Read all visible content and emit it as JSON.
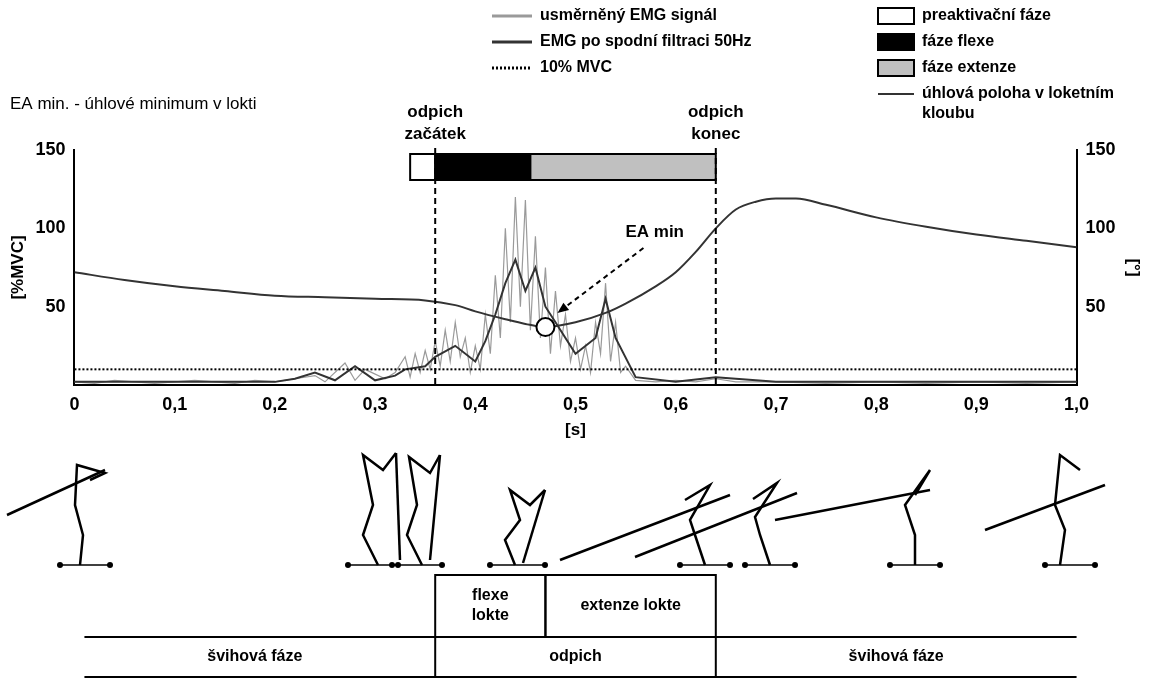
{
  "chart_data": {
    "type": "line",
    "note": "EA min. - úhlové minimum v lokti",
    "x_label": "[s]",
    "y_label": "[%MVC]",
    "y2_label": "[°]",
    "xlim": [
      0,
      1
    ],
    "xticks": [
      0,
      {
        "value": 0.1,
        "label": "0,1"
      },
      {
        "value": 0.2,
        "label": "0,2"
      },
      {
        "value": 0.3,
        "label": "0,3"
      },
      {
        "value": 0.4,
        "label": "0,4"
      },
      {
        "value": 0.5,
        "label": "0,5"
      },
      {
        "value": 0.6,
        "label": "0,6"
      },
      {
        "value": 0.7,
        "label": "0,7"
      },
      {
        "value": 0.8,
        "label": "0,8"
      },
      {
        "value": 0.9,
        "label": "0,9"
      },
      {
        "value": 1,
        "label": "1,0"
      }
    ],
    "ylim": [
      0,
      150
    ],
    "yticks": [
      50,
      100,
      150
    ],
    "y2lim": [
      0,
      150
    ],
    "y2ticks": [
      50,
      100,
      150
    ],
    "grid": false,
    "legend": "top",
    "series": [
      {
        "name": "usměrněný EMG signál",
        "color": "#9a9a9a",
        "line_style": "solid",
        "x": [
          0,
          0.02,
          0.04,
          0.06,
          0.08,
          0.1,
          0.12,
          0.14,
          0.16,
          0.18,
          0.2,
          0.22,
          0.24,
          0.25,
          0.27,
          0.28,
          0.29,
          0.31,
          0.32,
          0.33,
          0.335,
          0.34,
          0.345,
          0.35,
          0.355,
          0.36,
          0.365,
          0.37,
          0.375,
          0.38,
          0.385,
          0.39,
          0.395,
          0.4,
          0.405,
          0.41,
          0.415,
          0.42,
          0.425,
          0.43,
          0.435,
          0.44,
          0.445,
          0.45,
          0.455,
          0.46,
          0.465,
          0.47,
          0.475,
          0.48,
          0.485,
          0.49,
          0.495,
          0.5,
          0.505,
          0.51,
          0.515,
          0.52,
          0.525,
          0.53,
          0.535,
          0.54,
          0.545,
          0.55,
          0.56,
          0.58,
          0.6,
          0.62,
          0.64,
          0.66,
          0.7,
          0.75,
          0.8,
          0.85,
          0.9,
          0.95,
          1
        ],
        "values": [
          2,
          1,
          3,
          2,
          1,
          2,
          3,
          2,
          1,
          3,
          2,
          4,
          6,
          2,
          14,
          3,
          10,
          4,
          8,
          18,
          5,
          20,
          8,
          22,
          10,
          28,
          12,
          35,
          15,
          40,
          18,
          30,
          8,
          25,
          10,
          45,
          20,
          70,
          30,
          100,
          40,
          120,
          50,
          118,
          35,
          95,
          30,
          75,
          20,
          60,
          25,
          45,
          15,
          30,
          10,
          25,
          8,
          40,
          20,
          65,
          15,
          40,
          8,
          12,
          3,
          2,
          3,
          2,
          4,
          2,
          2,
          1,
          2,
          1,
          2,
          1,
          2
        ]
      },
      {
        "name": "EMG po spodní filtraci 50Hz",
        "color": "#333333",
        "line_style": "solid",
        "x": [
          0,
          0.1,
          0.2,
          0.22,
          0.24,
          0.26,
          0.28,
          0.3,
          0.32,
          0.33,
          0.35,
          0.36,
          0.38,
          0.4,
          0.41,
          0.42,
          0.43,
          0.44,
          0.45,
          0.46,
          0.47,
          0.48,
          0.5,
          0.52,
          0.53,
          0.54,
          0.56,
          0.6,
          0.64,
          0.7,
          0.8,
          1
        ],
        "values": [
          2,
          2,
          2,
          4,
          8,
          3,
          12,
          3,
          6,
          10,
          12,
          18,
          25,
          15,
          28,
          45,
          65,
          80,
          60,
          75,
          50,
          40,
          20,
          30,
          55,
          30,
          5,
          2,
          5,
          2,
          2,
          2
        ]
      },
      {
        "name": "10% MVC",
        "color": "#000000",
        "line_style": "dotted",
        "x": [
          0,
          1
        ],
        "values": [
          10,
          10
        ]
      },
      {
        "name": "úhlová poloha v loketním kloubu",
        "color": "#333333",
        "line_style": "solid",
        "axis": "y2",
        "x": [
          0,
          0.05,
          0.1,
          0.15,
          0.2,
          0.25,
          0.3,
          0.35,
          0.38,
          0.4,
          0.43,
          0.45,
          0.47,
          0.5,
          0.53,
          0.55,
          0.58,
          0.6,
          0.62,
          0.64,
          0.66,
          0.68,
          0.7,
          0.72,
          0.75,
          0.8,
          0.85,
          0.9,
          0.95,
          1
        ],
        "values": [
          72,
          67,
          63,
          60,
          57,
          56,
          55,
          54,
          51,
          47,
          42,
          39,
          37,
          40,
          46,
          52,
          63,
          72,
          85,
          100,
          112,
          117,
          119,
          119,
          115,
          107,
          101,
          96,
          92,
          88
        ]
      }
    ],
    "phases": [
      {
        "name": "preaktivační fáze",
        "color": "#ffffff",
        "start": 0.335,
        "end": 0.36
      },
      {
        "name": "fáze flexe",
        "color": "#000000",
        "start": 0.36,
        "end": 0.455
      },
      {
        "name": "fáze extenze",
        "color": "#c0c0c0",
        "start": 0.455,
        "end": 0.64
      }
    ],
    "vlines": [
      {
        "x": 0.36,
        "label": "odpich začátek"
      },
      {
        "x": 0.64,
        "label": "odpich konec"
      }
    ],
    "markers": [
      {
        "label": "EA min",
        "x": 0.47,
        "y": 37,
        "axis": "y2"
      }
    ],
    "phase_table": [
      [
        {
          "label": "flexe lokte",
          "start": 0.36,
          "end": 0.47
        },
        {
          "label": "extenze lokte",
          "start": 0.47,
          "end": 0.64
        }
      ],
      [
        {
          "label": "švihová fáze",
          "start": 0,
          "end": 0.36
        },
        {
          "label": "odpich",
          "start": 0.36,
          "end": 0.64
        },
        {
          "label": "švihová fáze",
          "start": 0.64,
          "end": 1
        }
      ]
    ]
  }
}
